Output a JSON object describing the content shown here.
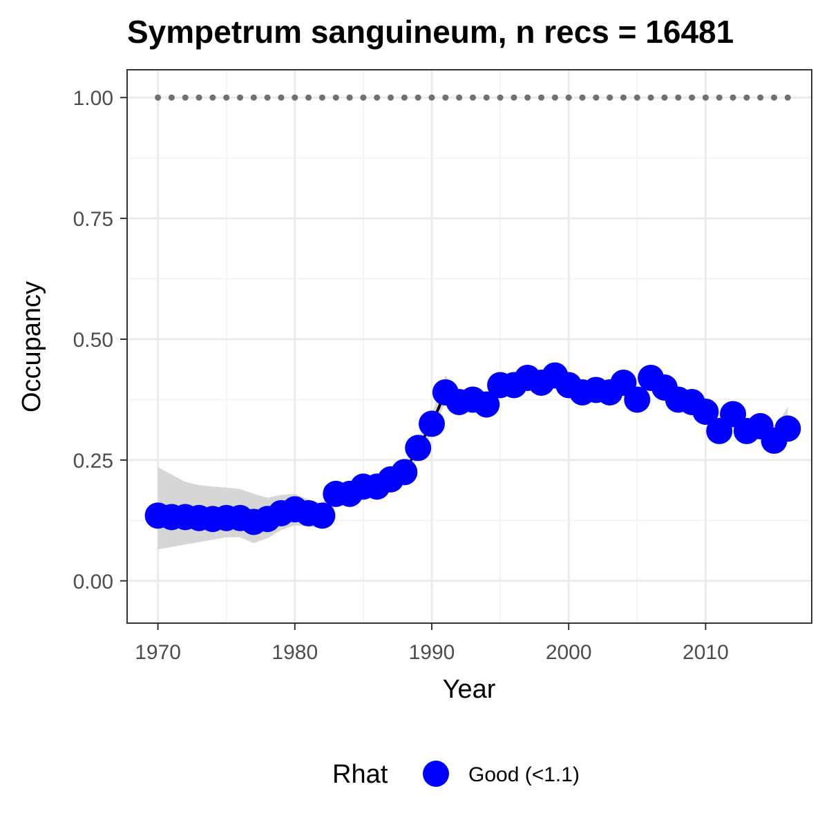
{
  "chart_data": {
    "type": "line",
    "title": "Sympetrum sanguineum, n recs = 16481",
    "xlabel": "Year",
    "ylabel": "Occupancy",
    "xlim": [
      1967.75,
      2017.75
    ],
    "ylim": [
      -0.0875,
      1.0575
    ],
    "x_ticks": [
      1970,
      1980,
      1990,
      2000,
      2010
    ],
    "y_ticks": [
      0.0,
      0.25,
      0.5,
      0.75,
      1.0
    ],
    "y_tick_labels": [
      "0.00",
      "0.25",
      "0.50",
      "0.75",
      "1.00"
    ],
    "grid": true,
    "legend": {
      "title": "Rhat",
      "position": "bottom",
      "entries": [
        {
          "label": "Good (<1.1)",
          "color": "#0000ff"
        }
      ]
    },
    "colors": {
      "points": "#0000ff",
      "ribbon": "#d6d6d6",
      "line": "#000000",
      "reference": "#707070"
    },
    "reference_line": {
      "y": 1.0,
      "style": "dotted",
      "x_range": [
        1970,
        2016
      ]
    },
    "x": [
      1970,
      1971,
      1972,
      1973,
      1974,
      1975,
      1976,
      1977,
      1978,
      1979,
      1980,
      1981,
      1982,
      1983,
      1984,
      1985,
      1986,
      1987,
      1988,
      1989,
      1990,
      1991,
      1992,
      1993,
      1994,
      1995,
      1996,
      1997,
      1998,
      1999,
      2000,
      2001,
      2002,
      2003,
      2004,
      2005,
      2006,
      2007,
      2008,
      2009,
      2010,
      2011,
      2012,
      2013,
      2014,
      2015,
      2016
    ],
    "series": [
      {
        "name": "Good (<1.1)",
        "values": [
          0.135,
          0.132,
          0.132,
          0.13,
          0.128,
          0.13,
          0.13,
          0.122,
          0.128,
          0.14,
          0.148,
          0.14,
          0.135,
          0.18,
          0.18,
          0.195,
          0.195,
          0.21,
          0.225,
          0.275,
          0.325,
          0.39,
          0.37,
          0.375,
          0.365,
          0.405,
          0.405,
          0.42,
          0.41,
          0.425,
          0.405,
          0.39,
          0.395,
          0.39,
          0.41,
          0.375,
          0.42,
          0.4,
          0.375,
          0.37,
          0.35,
          0.31,
          0.345,
          0.31,
          0.32,
          0.29,
          0.315
        ],
        "lower": [
          0.065,
          0.07,
          0.075,
          0.08,
          0.085,
          0.09,
          0.09,
          0.078,
          0.088,
          0.105,
          0.115,
          0.112,
          0.11,
          0.16,
          0.165,
          0.18,
          0.18,
          0.195,
          0.208,
          0.255,
          0.305,
          0.37,
          0.352,
          0.356,
          0.348,
          0.388,
          0.39,
          0.405,
          0.395,
          0.41,
          0.39,
          0.375,
          0.38,
          0.376,
          0.395,
          0.358,
          0.405,
          0.385,
          0.36,
          0.355,
          0.333,
          0.292,
          0.328,
          0.293,
          0.3,
          0.268,
          0.29
        ],
        "upper": [
          0.235,
          0.22,
          0.205,
          0.198,
          0.195,
          0.193,
          0.19,
          0.18,
          0.172,
          0.178,
          0.18,
          0.168,
          0.16,
          0.2,
          0.198,
          0.212,
          0.212,
          0.226,
          0.243,
          0.295,
          0.345,
          0.425,
          0.388,
          0.394,
          0.382,
          0.422,
          0.42,
          0.435,
          0.425,
          0.44,
          0.42,
          0.405,
          0.41,
          0.404,
          0.425,
          0.392,
          0.435,
          0.415,
          0.39,
          0.385,
          0.367,
          0.328,
          0.362,
          0.327,
          0.34,
          0.312,
          0.36
        ]
      }
    ]
  }
}
